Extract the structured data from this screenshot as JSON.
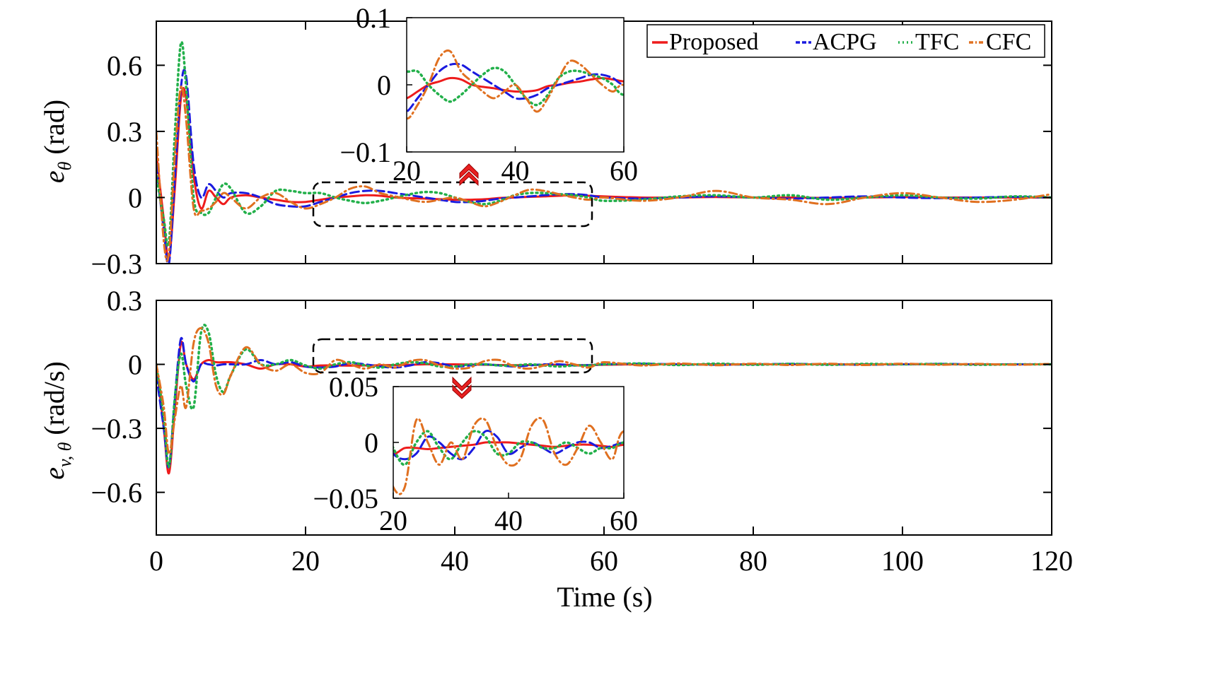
{
  "chart_data": [
    {
      "type": "line",
      "ylabel_main": "e",
      "ylabel_sub": "θ",
      "ylabel_unit": " (rad)",
      "xlabel": "",
      "xlim": [
        0,
        120
      ],
      "ylim": [
        -0.3,
        0.8
      ],
      "xticks": [
        "0",
        "20",
        "40",
        "60",
        "80",
        "100",
        "120"
      ],
      "yticks": [
        {
          "v": -0.3,
          "label": "−0.3"
        },
        {
          "v": 0,
          "label": "0"
        },
        {
          "v": 0.3,
          "label": "0.3"
        },
        {
          "v": 0.6,
          "label": "0.6"
        }
      ],
      "legend": {
        "placement": "top-right",
        "entries": [
          "Proposed",
          "ACPG",
          "TFC",
          "CFC"
        ]
      },
      "x": [
        0,
        1,
        1.7,
        2.5,
        3.3,
        4,
        5,
        6,
        7,
        8,
        9,
        10,
        12,
        14,
        16,
        18,
        20,
        22,
        24,
        26,
        28,
        30,
        32,
        34,
        36,
        38,
        40,
        42,
        44,
        46,
        48,
        50,
        52,
        54,
        56,
        58,
        60,
        65,
        70,
        75,
        80,
        85,
        90,
        95,
        100,
        105,
        110,
        115,
        120
      ],
      "series": [
        {
          "name": "Proposed",
          "color": "#ee1c1c",
          "values": [
            0.2,
            -0.1,
            -0.28,
            0.05,
            0.45,
            0.45,
            0.1,
            -0.05,
            0.03,
            0,
            -0.03,
            0,
            0.01,
            0,
            -0.01,
            -0.02,
            -0.02,
            -0.01,
            0,
            0.005,
            0.01,
            0.008,
            0,
            -0.003,
            -0.005,
            -0.008,
            -0.01,
            -0.01,
            -0.008,
            -0.002,
            0,
            0.003,
            0.005,
            0.008,
            0.01,
            0.008,
            0.005,
            0,
            0,
            0.002,
            0,
            0,
            -0.002,
            0,
            0.002,
            0,
            0,
            0,
            0
          ]
        },
        {
          "name": "ACPG",
          "color": "#1a1adf",
          "values": [
            0.15,
            -0.15,
            -0.3,
            0.1,
            0.5,
            0.55,
            0.15,
            0,
            0.06,
            0.03,
            0,
            0.02,
            0.02,
            0,
            -0.03,
            -0.04,
            -0.04,
            -0.02,
            0,
            0.02,
            0.03,
            0.03,
            0.02,
            0.01,
            0,
            -0.01,
            -0.02,
            -0.02,
            -0.015,
            -0.005,
            0,
            0.005,
            0.01,
            0.015,
            0.015,
            0.01,
            0,
            -0.005,
            0,
            0.005,
            0,
            -0.005,
            0,
            0.005,
            0,
            -0.003,
            0,
            0.003,
            0
          ]
        },
        {
          "name": "TFC",
          "color": "#22b04a",
          "values": [
            0.1,
            -0.1,
            -0.2,
            0.3,
            0.7,
            0.5,
            0,
            -0.07,
            -0.07,
            0,
            0.06,
            0.04,
            -0.07,
            -0.04,
            0.03,
            0.03,
            0.02,
            0.02,
            0,
            -0.015,
            -0.025,
            -0.015,
            0,
            0.015,
            0.025,
            0.02,
            0,
            -0.02,
            -0.03,
            -0.015,
            0.01,
            0.02,
            0.02,
            0.015,
            0.01,
            0,
            -0.015,
            -0.01,
            0.005,
            0.01,
            0,
            0.01,
            -0.01,
            0,
            0.01,
            0,
            -0.005,
            0.005,
            0
          ]
        },
        {
          "name": "CFC",
          "color": "#e07020",
          "values": [
            0.3,
            -0.2,
            -0.25,
            0.2,
            0.5,
            0.35,
            -0.05,
            -0.06,
            -0.05,
            -0.02,
            0.02,
            0,
            -0.05,
            0,
            0.02,
            -0.02,
            -0.05,
            -0.03,
            0,
            0.04,
            0.05,
            0.02,
            0.005,
            -0.01,
            -0.02,
            -0.01,
            0,
            -0.02,
            -0.04,
            -0.02,
            0.01,
            0.035,
            0.03,
            0.015,
            0,
            -0.01,
            0,
            -0.015,
            0,
            0.03,
            0,
            -0.01,
            -0.03,
            0,
            0.02,
            0,
            -0.02,
            -0.01,
            0.015
          ]
        }
      ],
      "inset": {
        "xlim": [
          20,
          60
        ],
        "ylim": [
          -0.1,
          0.1
        ],
        "xticks": [
          "20",
          "40",
          "60"
        ],
        "yticks": [
          {
            "v": 0.1,
            "label": "0.1"
          },
          {
            "v": 0,
            "label": "0"
          },
          {
            "v": -0.1,
            "label": "−0.1"
          }
        ]
      }
    },
    {
      "type": "line",
      "ylabel_main": "e",
      "ylabel_sub": "v, θ",
      "ylabel_unit": " (rad/s)",
      "xlabel": "Time (s)",
      "xlim": [
        0,
        120
      ],
      "ylim": [
        -0.8,
        0.3
      ],
      "xticks": [
        "0",
        "20",
        "40",
        "60",
        "80",
        "100",
        "120"
      ],
      "yticks": [
        {
          "v": -0.6,
          "label": "−0.6"
        },
        {
          "v": -0.3,
          "label": "−0.3"
        },
        {
          "v": 0,
          "label": "0"
        },
        {
          "v": 0.3,
          "label": "0.3"
        }
      ],
      "x": [
        0,
        1,
        1.7,
        2.5,
        3.3,
        4,
        5,
        6,
        7,
        8,
        9,
        10,
        12,
        14,
        16,
        18,
        20,
        22,
        24,
        26,
        28,
        30,
        32,
        34,
        36,
        38,
        40,
        42,
        44,
        46,
        48,
        50,
        52,
        54,
        56,
        58,
        60,
        65,
        70,
        75,
        80,
        85,
        90,
        95,
        100,
        105,
        110,
        115,
        120
      ],
      "series": [
        {
          "name": "Proposed",
          "color": "#ee1c1c",
          "values": [
            0,
            -0.3,
            -0.51,
            -0.2,
            0.1,
            0,
            -0.07,
            0,
            0.02,
            0.01,
            0.01,
            0.01,
            0,
            -0.02,
            0,
            0,
            -0.01,
            -0.005,
            -0.005,
            -0.006,
            -0.005,
            -0.004,
            -0.003,
            -0.002,
            0,
            0,
            0,
            -0.001,
            -0.002,
            -0.003,
            -0.004,
            -0.003,
            -0.002,
            -0.002,
            -0.003,
            -0.004,
            -0.002,
            0,
            0,
            0,
            0,
            0,
            0,
            0,
            0,
            0,
            0,
            0,
            0
          ]
        },
        {
          "name": "ACPG",
          "color": "#1a1adf",
          "values": [
            -0.05,
            -0.3,
            -0.48,
            -0.15,
            0.12,
            0,
            -0.08,
            0,
            0,
            -0.005,
            0,
            0,
            0,
            0.02,
            0,
            0.01,
            -0.01,
            -0.015,
            -0.01,
            0.005,
            0,
            -0.01,
            -0.015,
            -0.005,
            0.01,
            0.005,
            -0.01,
            -0.005,
            0,
            -0.005,
            -0.01,
            -0.005,
            0,
            0,
            -0.005,
            -0.003,
            0,
            0.003,
            0,
            -0.002,
            0,
            0.002,
            0,
            -0.002,
            0,
            0.002,
            0,
            0,
            0
          ]
        },
        {
          "name": "TFC",
          "color": "#22b04a",
          "values": [
            0,
            -0.25,
            -0.48,
            -0.15,
            0.05,
            -0.1,
            -0.2,
            0.15,
            0.15,
            -0.05,
            -0.13,
            -0.05,
            0.07,
            0,
            0,
            0.02,
            -0.005,
            -0.02,
            0,
            0.01,
            -0.005,
            -0.015,
            0,
            0.01,
            0.005,
            -0.01,
            -0.01,
            0,
            0,
            -0.005,
            -0.005,
            0,
            -0.005,
            -0.01,
            -0.005,
            -0.005,
            0,
            0.004,
            -0.003,
            0.003,
            -0.002,
            0.002,
            -0.002,
            0.002,
            0,
            0.002,
            -0.002,
            0,
            0
          ]
        },
        {
          "name": "CFC",
          "color": "#e07020",
          "values": [
            0,
            -0.2,
            -0.42,
            -0.25,
            -0.1,
            -0.2,
            0.1,
            0.17,
            0.1,
            -0.1,
            -0.14,
            -0.05,
            0.08,
            0,
            -0.03,
            0,
            -0.04,
            -0.04,
            0.02,
            0,
            -0.02,
            0,
            -0.015,
            0.015,
            0.02,
            -0.005,
            -0.02,
            -0.015,
            0.015,
            0.02,
            -0.01,
            -0.02,
            -0.005,
            0.015,
            0,
            -0.015,
            0.01,
            -0.005,
            0.004,
            -0.004,
            0.003,
            -0.003,
            0.003,
            -0.003,
            0.003,
            -0.002,
            0.002,
            -0.002,
            0.002
          ]
        }
      ],
      "inset": {
        "xlim": [
          20,
          60
        ],
        "ylim": [
          -0.05,
          0.05
        ],
        "xticks": [
          "20",
          "40",
          "60"
        ],
        "yticks": [
          {
            "v": 0.05,
            "label": "0.05"
          },
          {
            "v": 0,
            "label": "0"
          },
          {
            "v": -0.05,
            "label": "−0.05"
          }
        ]
      }
    }
  ]
}
